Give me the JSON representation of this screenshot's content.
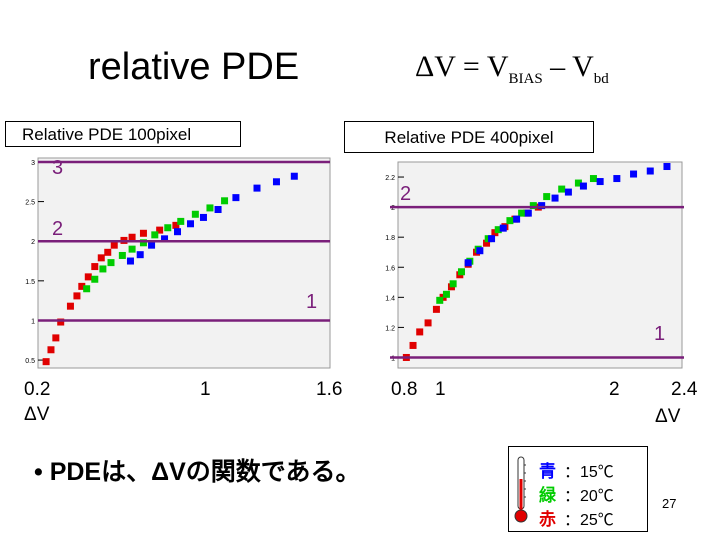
{
  "slide": {
    "title": "relative PDE",
    "formula": {
      "lhs": "ΔV",
      "eq": " = ",
      "v": "V",
      "bias": "BIAS",
      "minus": " – V",
      "bd": "bd"
    },
    "bullet": "• PDEは、ΔVの関数である。",
    "page_number": "27"
  },
  "legend": [
    {
      "label": "青",
      "temp": "：15℃",
      "color": "#0000ff"
    },
    {
      "label": "緑",
      "temp": "：20℃",
      "color": "#00cc00"
    },
    {
      "label": "赤",
      "temp": "：25℃",
      "color": "#e00000"
    }
  ],
  "chart_data": [
    {
      "type": "scatter",
      "title": "Relative PDE  100pixel",
      "x_ticks_outside": [
        "0.2",
        "1",
        "1.6"
      ],
      "xlabel": "ΔV",
      "ylim": [
        0.4,
        3.05
      ],
      "xlim": [
        0.2,
        2.0
      ],
      "y_ticks": [
        0.5,
        1,
        1.5,
        2,
        2.5,
        3
      ],
      "y_tick_labels": [
        "0.5",
        "1",
        "1.5",
        "2",
        "2.5",
        "3"
      ],
      "reference_lines": [
        {
          "y": 3,
          "label": "3"
        },
        {
          "y": 2,
          "label": "2"
        },
        {
          "y": 1,
          "label": "1"
        }
      ],
      "series": [
        {
          "color": "#e00000",
          "points": [
            [
              0.25,
              0.48
            ],
            [
              0.28,
              0.63
            ],
            [
              0.31,
              0.78
            ],
            [
              0.34,
              0.98
            ],
            [
              0.4,
              1.18
            ],
            [
              0.44,
              1.31
            ],
            [
              0.47,
              1.43
            ],
            [
              0.51,
              1.55
            ],
            [
              0.55,
              1.68
            ],
            [
              0.59,
              1.79
            ],
            [
              0.63,
              1.86
            ],
            [
              0.67,
              1.95
            ],
            [
              0.73,
              2.01
            ],
            [
              0.78,
              2.05
            ],
            [
              0.85,
              2.1
            ],
            [
              0.95,
              2.14
            ],
            [
              1.05,
              2.2
            ]
          ]
        },
        {
          "color": "#00cc00",
          "points": [
            [
              0.5,
              1.4
            ],
            [
              0.55,
              1.52
            ],
            [
              0.6,
              1.65
            ],
            [
              0.65,
              1.73
            ],
            [
              0.72,
              1.82
            ],
            [
              0.78,
              1.9
            ],
            [
              0.85,
              1.98
            ],
            [
              0.92,
              2.08
            ],
            [
              1.0,
              2.17
            ],
            [
              1.08,
              2.25
            ],
            [
              1.17,
              2.34
            ],
            [
              1.26,
              2.42
            ],
            [
              1.35,
              2.51
            ]
          ]
        },
        {
          "color": "#0000ff",
          "points": [
            [
              0.77,
              1.75
            ],
            [
              0.83,
              1.83
            ],
            [
              0.9,
              1.95
            ],
            [
              0.98,
              2.03
            ],
            [
              1.06,
              2.12
            ],
            [
              1.14,
              2.22
            ],
            [
              1.22,
              2.3
            ],
            [
              1.31,
              2.4
            ],
            [
              1.42,
              2.55
            ],
            [
              1.55,
              2.67
            ],
            [
              1.67,
              2.75
            ],
            [
              1.78,
              2.82
            ]
          ]
        }
      ]
    },
    {
      "type": "scatter",
      "title": "Relative PDE  400pixel",
      "x_ticks_outside": [
        "0.8",
        "1",
        "2",
        "2.4"
      ],
      "xlabel": "ΔV",
      "ylim": [
        0.93,
        2.3
      ],
      "xlim": [
        0.8,
        2.5
      ],
      "y_ticks": [
        1,
        1.2,
        1.4,
        1.6,
        1.8,
        2,
        2.2
      ],
      "y_tick_labels": [
        "1",
        "1.2",
        "1.4",
        "1.6",
        "1.8",
        "2",
        "2.2"
      ],
      "reference_lines": [
        {
          "y": 2,
          "label": "2"
        },
        {
          "y": 1,
          "label": "1"
        }
      ],
      "series": [
        {
          "color": "#e00000",
          "points": [
            [
              0.85,
              1.0
            ],
            [
              0.89,
              1.08
            ],
            [
              0.93,
              1.17
            ],
            [
              0.98,
              1.23
            ],
            [
              1.03,
              1.32
            ],
            [
              1.07,
              1.4
            ],
            [
              1.12,
              1.47
            ],
            [
              1.17,
              1.55
            ],
            [
              1.22,
              1.62
            ],
            [
              1.27,
              1.7
            ],
            [
              1.33,
              1.76
            ],
            [
              1.38,
              1.83
            ],
            [
              1.44,
              1.87
            ],
            [
              1.5,
              1.92
            ],
            [
              1.57,
              1.96
            ],
            [
              1.64,
              2.0
            ]
          ]
        },
        {
          "color": "#00cc00",
          "points": [
            [
              1.05,
              1.38
            ],
            [
              1.09,
              1.42
            ],
            [
              1.13,
              1.49
            ],
            [
              1.18,
              1.57
            ],
            [
              1.23,
              1.64
            ],
            [
              1.28,
              1.72
            ],
            [
              1.34,
              1.79
            ],
            [
              1.4,
              1.85
            ],
            [
              1.47,
              1.91
            ],
            [
              1.54,
              1.96
            ],
            [
              1.61,
              2.01
            ],
            [
              1.69,
              2.07
            ],
            [
              1.78,
              2.12
            ],
            [
              1.88,
              2.16
            ],
            [
              1.97,
              2.19
            ]
          ]
        },
        {
          "color": "#0000ff",
          "points": [
            [
              1.22,
              1.63
            ],
            [
              1.29,
              1.71
            ],
            [
              1.36,
              1.79
            ],
            [
              1.43,
              1.86
            ],
            [
              1.51,
              1.92
            ],
            [
              1.58,
              1.96
            ],
            [
              1.66,
              2.01
            ],
            [
              1.74,
              2.06
            ],
            [
              1.82,
              2.1
            ],
            [
              1.91,
              2.14
            ],
            [
              2.01,
              2.17
            ],
            [
              2.11,
              2.19
            ],
            [
              2.21,
              2.22
            ],
            [
              2.31,
              2.24
            ],
            [
              2.41,
              2.27
            ]
          ]
        }
      ]
    }
  ]
}
